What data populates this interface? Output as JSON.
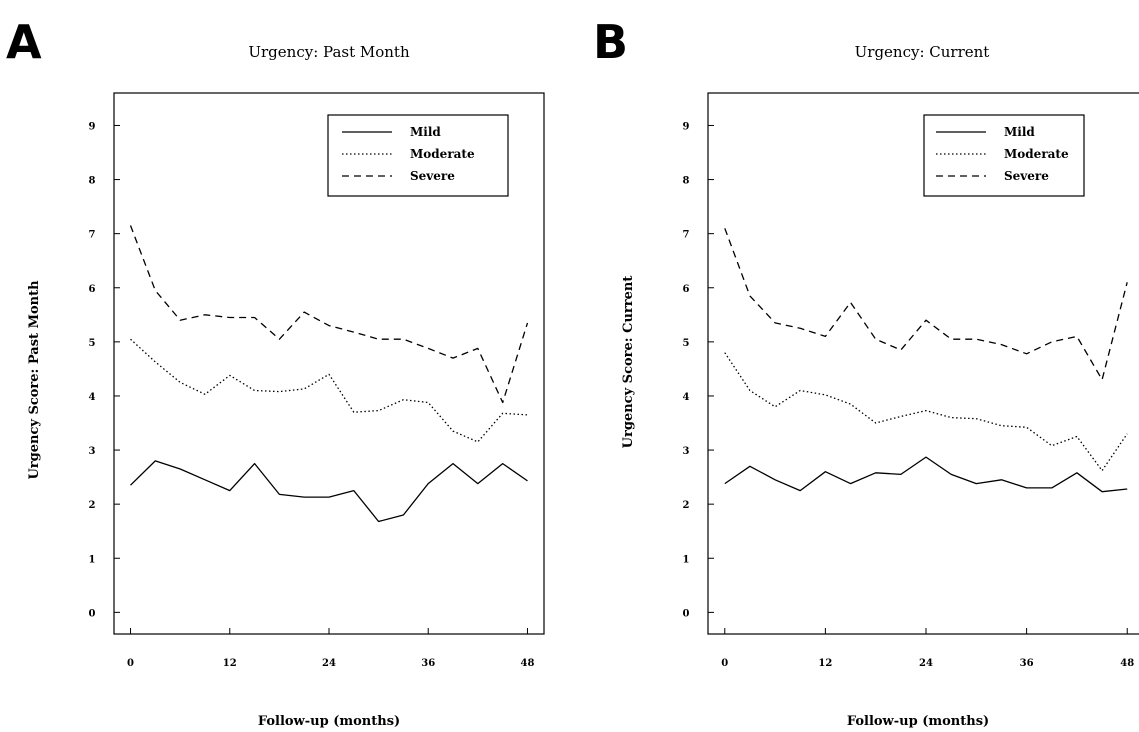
{
  "chart_data": [
    {
      "panel": "A",
      "type": "line",
      "title": "Urgency: Past Month",
      "xlabel": "Follow-up (months)",
      "ylabel": "Urgency Score: Past Month",
      "xlim": [
        -2,
        50
      ],
      "ylim": [
        -0.4,
        9.6
      ],
      "xticks": [
        0,
        12,
        24,
        36,
        48
      ],
      "yticks": [
        0,
        1,
        2,
        3,
        4,
        5,
        6,
        7,
        8,
        9
      ],
      "grid": false,
      "legend_position": "top-right",
      "x": [
        0,
        3,
        6,
        9,
        12,
        15,
        18,
        21,
        24,
        27,
        30,
        33,
        36,
        39,
        42,
        45,
        48
      ],
      "series": [
        {
          "name": "Mild",
          "style": "solid",
          "values": [
            2.35,
            2.8,
            2.65,
            2.45,
            2.25,
            2.75,
            2.18,
            2.13,
            2.13,
            2.25,
            1.68,
            1.8,
            2.38,
            2.75,
            2.38,
            2.75,
            2.43
          ]
        },
        {
          "name": "Moderate",
          "style": "dotted",
          "values": [
            5.05,
            4.63,
            4.25,
            4.03,
            4.38,
            4.1,
            4.08,
            4.13,
            4.4,
            3.7,
            3.73,
            3.93,
            3.88,
            3.35,
            3.15,
            3.68,
            3.65
          ]
        },
        {
          "name": "Severe",
          "style": "dashed",
          "values": [
            7.15,
            5.95,
            5.4,
            5.5,
            5.45,
            5.45,
            5.05,
            5.55,
            5.3,
            5.18,
            5.05,
            5.05,
            4.88,
            4.7,
            4.88,
            3.88,
            5.35
          ]
        }
      ]
    },
    {
      "panel": "B",
      "type": "line",
      "title": "Urgency: Current",
      "xlabel": "Follow-up (months)",
      "ylabel": "Urgency Score: Current",
      "xlim": [
        -2,
        50
      ],
      "ylim": [
        -0.4,
        9.6
      ],
      "xticks": [
        0,
        12,
        24,
        36,
        48
      ],
      "yticks": [
        0,
        1,
        2,
        3,
        4,
        5,
        6,
        7,
        8,
        9
      ],
      "grid": false,
      "legend_position": "top-right",
      "x": [
        0,
        3,
        6,
        9,
        12,
        15,
        18,
        21,
        24,
        27,
        30,
        33,
        36,
        39,
        42,
        45,
        48
      ],
      "series": [
        {
          "name": "Mild",
          "style": "solid",
          "values": [
            2.38,
            2.7,
            2.45,
            2.25,
            2.6,
            2.38,
            2.58,
            2.55,
            2.87,
            2.55,
            2.38,
            2.45,
            2.3,
            2.3,
            2.58,
            2.23,
            2.28
          ]
        },
        {
          "name": "Moderate",
          "style": "dotted",
          "values": [
            4.8,
            4.1,
            3.8,
            4.1,
            4.02,
            3.85,
            3.5,
            3.62,
            3.73,
            3.6,
            3.58,
            3.45,
            3.42,
            3.08,
            3.25,
            2.62,
            3.3
          ]
        },
        {
          "name": "Severe",
          "style": "dashed",
          "values": [
            7.1,
            5.85,
            5.35,
            5.25,
            5.1,
            5.73,
            5.05,
            4.85,
            5.4,
            5.05,
            5.05,
            4.95,
            4.78,
            5.0,
            5.1,
            4.3,
            6.1
          ]
        }
      ]
    }
  ]
}
